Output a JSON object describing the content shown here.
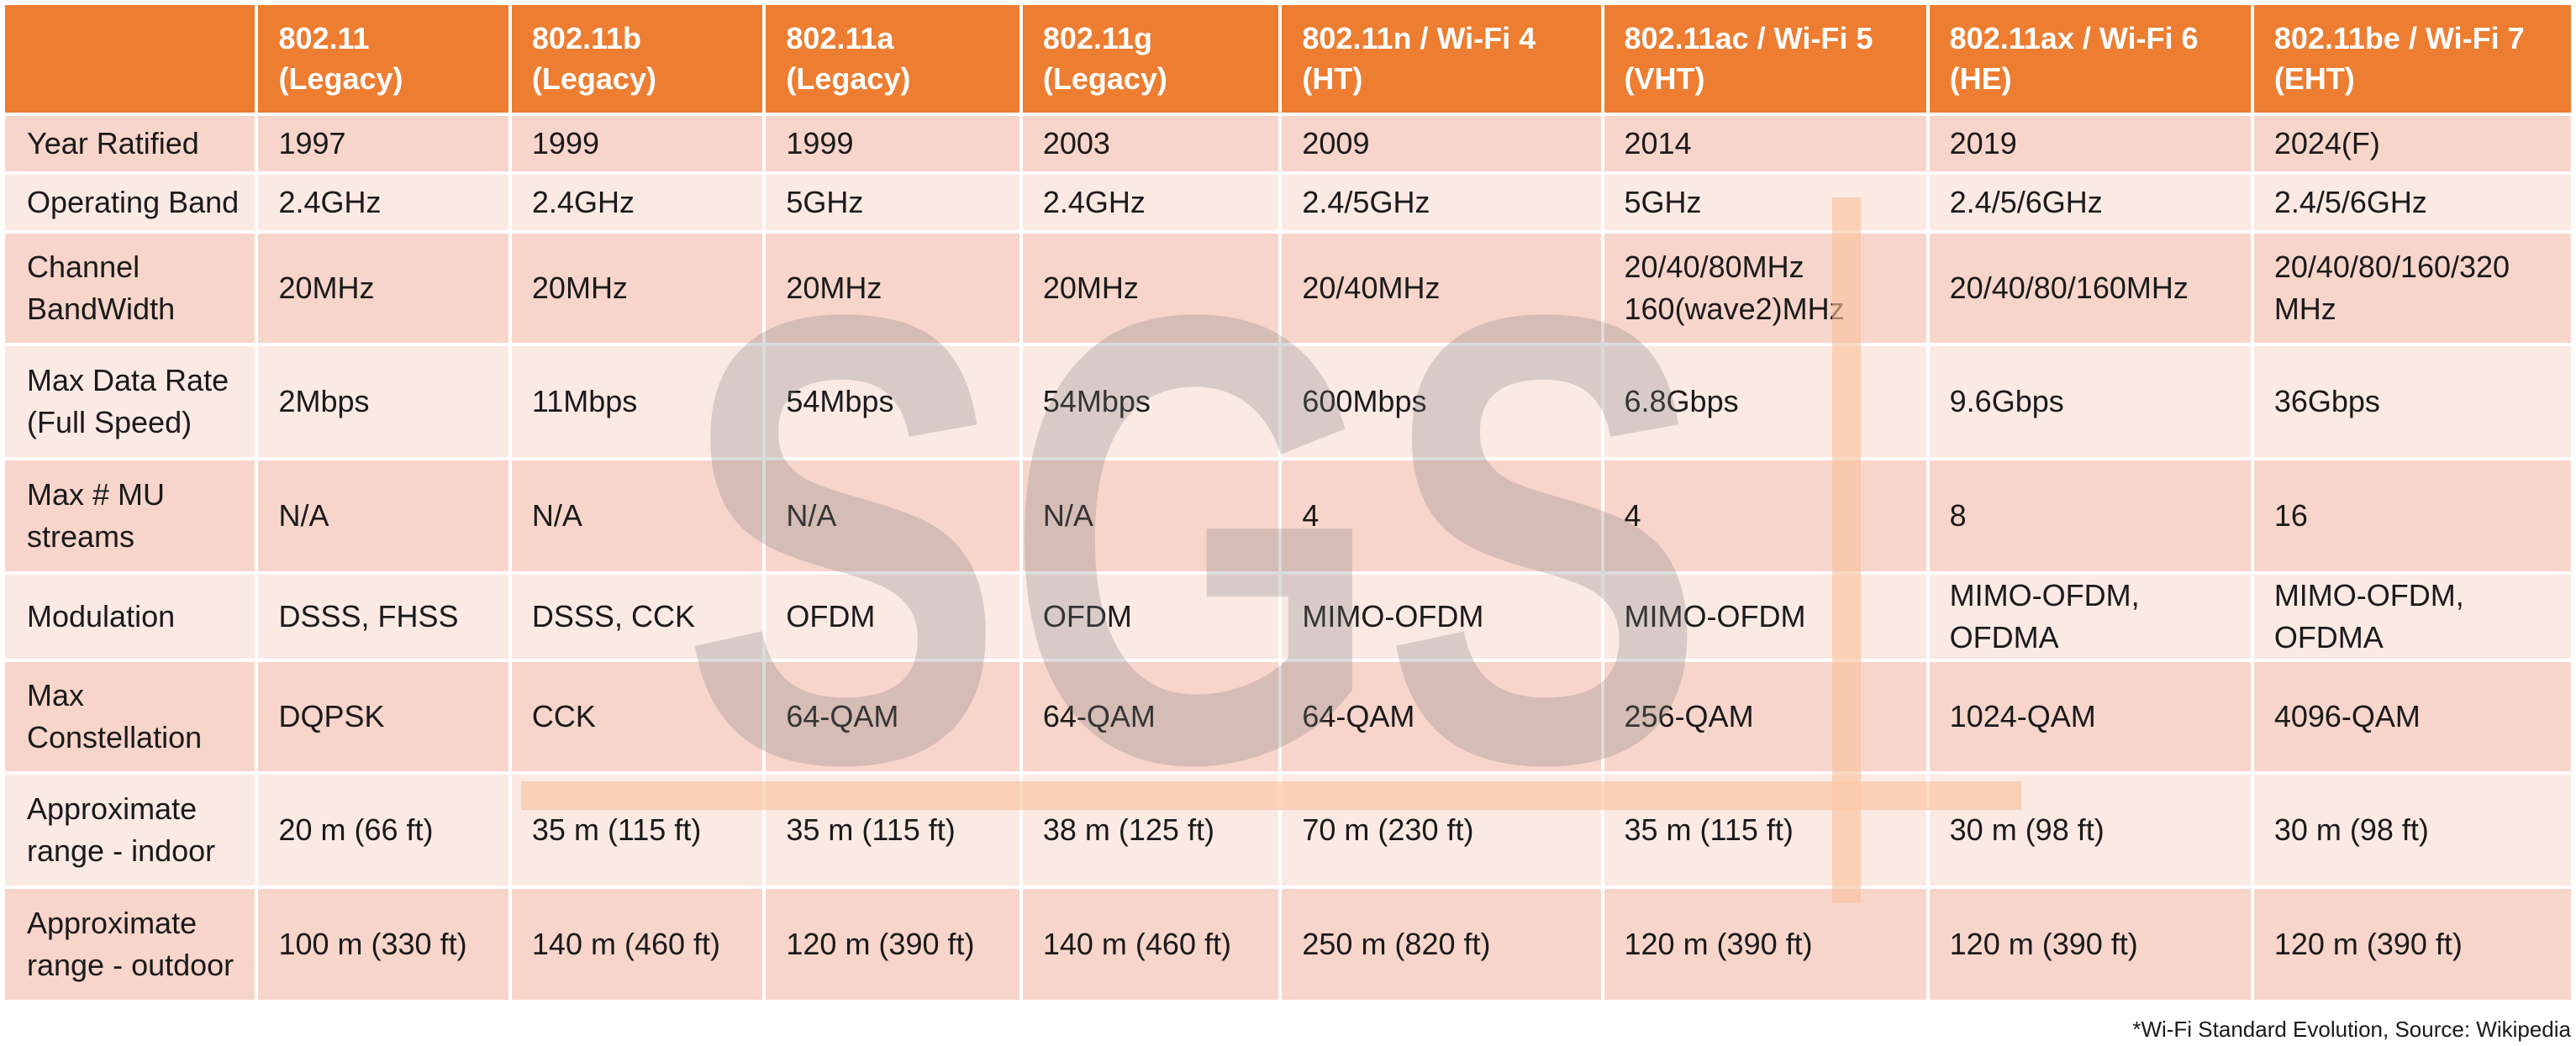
{
  "header": {
    "corner": "",
    "columns": [
      {
        "line1": "802.11",
        "line2": "(Legacy)"
      },
      {
        "line1": "802.11b",
        "line2": "(Legacy)"
      },
      {
        "line1": "802.11a",
        "line2": "(Legacy)"
      },
      {
        "line1": "802.11g",
        "line2": "(Legacy)"
      },
      {
        "line1": "802.11n / Wi-Fi 4",
        "line2": "(HT)"
      },
      {
        "line1": "802.11ac / Wi-Fi 5",
        "line2": "(VHT)"
      },
      {
        "line1": "802.11ax / Wi-Fi 6",
        "line2": "(HE)"
      },
      {
        "line1": "802.11be / Wi-Fi 7",
        "line2": "(EHT)"
      }
    ]
  },
  "rows": [
    {
      "label": [
        "Year Ratified"
      ],
      "cells": [
        [
          "1997"
        ],
        [
          "1999"
        ],
        [
          "1999"
        ],
        [
          "2003"
        ],
        [
          "2009"
        ],
        [
          "2014"
        ],
        [
          "2019"
        ],
        [
          "2024(F)"
        ]
      ]
    },
    {
      "label": [
        "Operating Band"
      ],
      "cells": [
        [
          "2.4GHz"
        ],
        [
          "2.4GHz"
        ],
        [
          "5GHz"
        ],
        [
          "2.4GHz"
        ],
        [
          "2.4/5GHz"
        ],
        [
          "5GHz"
        ],
        [
          "2.4/5/6GHz"
        ],
        [
          "2.4/5/6GHz"
        ]
      ]
    },
    {
      "label": [
        "Channel",
        "BandWidth"
      ],
      "cells": [
        [
          "20MHz"
        ],
        [
          "20MHz"
        ],
        [
          "20MHz"
        ],
        [
          "20MHz"
        ],
        [
          "20/40MHz"
        ],
        [
          "20/40/80MHz",
          "160(wave2)MHz"
        ],
        [
          "20/40/80/160MHz"
        ],
        [
          "20/40/80/160/320",
          "MHz"
        ]
      ]
    },
    {
      "label": [
        "Max Data Rate",
        "(Full Speed)"
      ],
      "cells": [
        [
          "2Mbps"
        ],
        [
          "11Mbps"
        ],
        [
          "54Mbps"
        ],
        [
          "54Mbps"
        ],
        [
          "600Mbps"
        ],
        [
          "6.8Gbps"
        ],
        [
          "9.6Gbps"
        ],
        [
          "36Gbps"
        ]
      ]
    },
    {
      "label": [
        "Max # MU",
        "streams"
      ],
      "cells": [
        [
          "N/A"
        ],
        [
          "N/A"
        ],
        [
          "N/A"
        ],
        [
          "N/A"
        ],
        [
          "4"
        ],
        [
          "4"
        ],
        [
          "8"
        ],
        [
          "16"
        ]
      ]
    },
    {
      "label": [
        "Modulation"
      ],
      "cells": [
        [
          "DSSS, FHSS"
        ],
        [
          "DSSS, CCK"
        ],
        [
          "OFDM"
        ],
        [
          "OFDM"
        ],
        [
          "MIMO-OFDM"
        ],
        [
          "MIMO-OFDM"
        ],
        [
          "MIMO-OFDM,",
          "OFDMA"
        ],
        [
          "MIMO-OFDM,",
          "OFDMA"
        ]
      ]
    },
    {
      "label": [
        "Max",
        "Constellation"
      ],
      "cells": [
        [
          "DQPSK"
        ],
        [
          "CCK"
        ],
        [
          "64-QAM"
        ],
        [
          "64-QAM"
        ],
        [
          "64-QAM"
        ],
        [
          "256-QAM"
        ],
        [
          "1024-QAM"
        ],
        [
          "4096-QAM"
        ]
      ]
    },
    {
      "label": [
        "Approximate",
        "range - indoor"
      ],
      "cells": [
        [
          "20 m (66 ft)"
        ],
        [
          "35 m (115 ft)"
        ],
        [
          "35 m (115 ft)"
        ],
        [
          "38 m (125 ft)"
        ],
        [
          "70 m (230 ft)"
        ],
        [
          "35 m (115 ft)"
        ],
        [
          "30 m (98 ft)"
        ],
        [
          "30 m (98 ft)"
        ]
      ]
    },
    {
      "label": [
        "Approximate",
        "range - outdoor"
      ],
      "cells": [
        [
          "100 m (330 ft)"
        ],
        [
          "140 m (460 ft)"
        ],
        [
          "120 m (390 ft)"
        ],
        [
          "140 m (460 ft)"
        ],
        [
          "250 m (820 ft)"
        ],
        [
          "120 m (390 ft)"
        ],
        [
          "120 m (390 ft)"
        ],
        [
          "120 m (390 ft)"
        ]
      ]
    }
  ],
  "watermark": {
    "text": "SGS"
  },
  "footnote": "*Wi-Fi Standard Evolution, Source: Wikipedia",
  "colors": {
    "header_bg": "#ed7d31",
    "header_text": "#ffffff",
    "row_dark": "#f7d5cb",
    "row_light": "#fbe9e4",
    "watermark_letters": "#7f7f7f",
    "watermark_lines": "#f8c29c"
  }
}
